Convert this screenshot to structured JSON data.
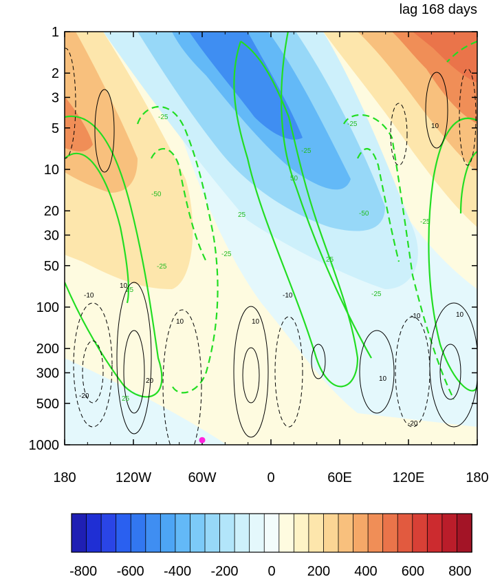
{
  "chart_data": {
    "type": "heatmap",
    "title": "lag 168 days",
    "xlabel": "",
    "ylabel": "",
    "x_axis": {
      "ticks": [
        -180,
        -120,
        -60,
        0,
        60,
        120,
        180
      ],
      "tick_labels": [
        "180",
        "120W",
        "60W",
        "0",
        "60E",
        "120E",
        "180"
      ],
      "range": [
        -180,
        180
      ]
    },
    "y_axis": {
      "scale": "log",
      "reversed": true,
      "ticks": [
        1,
        2,
        3,
        5,
        10,
        20,
        30,
        50,
        100,
        200,
        300,
        500,
        1000
      ],
      "tick_labels": [
        "1",
        "2",
        "3",
        "5",
        "10",
        "20",
        "30",
        "50",
        "100",
        "200",
        "300",
        "500",
        "1000"
      ],
      "range": [
        1,
        1000
      ]
    },
    "colorbar": {
      "min": -850,
      "max": 850,
      "step": 50,
      "tick_labels": [
        "-800",
        "-600",
        "-400",
        "-200",
        "0",
        "200",
        "400",
        "600",
        "800"
      ],
      "tick_values": [
        -800,
        -600,
        -400,
        -200,
        0,
        200,
        400,
        600,
        800
      ],
      "colors": [
        "#1f1fb4",
        "#1f2fd4",
        "#2a45e6",
        "#2a60f0",
        "#3277f0",
        "#3f8ef2",
        "#4da5f5",
        "#63b9f7",
        "#7ccaf8",
        "#97d8f8",
        "#b2e5fa",
        "#cdf0fb",
        "#e4f8fc",
        "#f3fcfc",
        "#fefbe0",
        "#fef3c6",
        "#fde6ac",
        "#fbd594",
        "#f8c07d",
        "#f5a868",
        "#f08e57",
        "#ea744a",
        "#e25a3f",
        "#d84036",
        "#cc2b2f",
        "#ba1d2a",
        "#a31426"
      ]
    },
    "contour_labels": {
      "green": [
        "25",
        "-25",
        "-50",
        "50"
      ],
      "black": [
        "10",
        "-10",
        "20",
        "-20"
      ]
    },
    "marker": {
      "lon": -60,
      "level": 925,
      "color": "#ff22dd"
    }
  }
}
